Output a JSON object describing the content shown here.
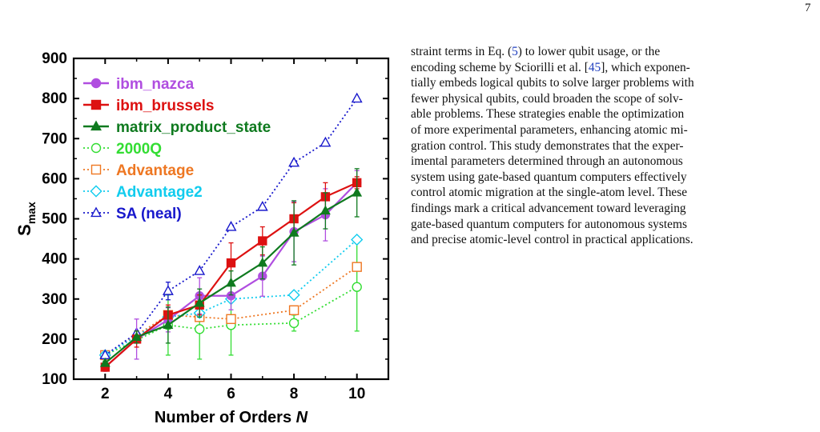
{
  "page_number": "7",
  "chart_data": {
    "type": "line",
    "xlabel": "Number of Orders",
    "xlabel_var": "N",
    "ylabel": "S",
    "ylabel_sub": "max",
    "xlim": [
      1,
      11
    ],
    "ylim": [
      100,
      900
    ],
    "xticks": [
      2,
      4,
      6,
      8,
      10
    ],
    "yticks": [
      100,
      200,
      300,
      400,
      500,
      600,
      700,
      800,
      900
    ],
    "grid": false,
    "legend_position": "top-left",
    "series": [
      {
        "name": "ibm_nazca",
        "color": "#b04ee0",
        "marker": "circle",
        "filled": true,
        "dashed": false,
        "x": [
          2,
          3,
          4,
          5,
          6,
          7,
          8,
          9,
          10
        ],
        "y": [
          130,
          200,
          248,
          308,
          308,
          357,
          468,
          510,
          590
        ],
        "err": [
          10,
          50,
          30,
          45,
          35,
          50,
          75,
          65,
          30
        ]
      },
      {
        "name": "ibm_brussels",
        "color": "#dd1111",
        "marker": "square",
        "filled": true,
        "dashed": false,
        "x": [
          2,
          3,
          4,
          5,
          6,
          7,
          8,
          9,
          10
        ],
        "y": [
          130,
          200,
          260,
          285,
          390,
          445,
          500,
          555,
          590
        ],
        "err": [
          10,
          20,
          25,
          25,
          50,
          35,
          40,
          35,
          15
        ]
      },
      {
        "name": "matrix_product_state",
        "color": "#0f7a1f",
        "marker": "triangle",
        "filled": true,
        "dashed": false,
        "x": [
          2,
          3,
          4,
          5,
          6,
          7,
          8,
          9,
          10
        ],
        "y": [
          140,
          205,
          235,
          290,
          340,
          390,
          465,
          520,
          565
        ],
        "err": [
          5,
          15,
          45,
          35,
          30,
          40,
          80,
          45,
          60
        ]
      },
      {
        "name": "2000Q",
        "color": "#33dd33",
        "marker": "circle",
        "filled": false,
        "dashed": true,
        "x": [
          2,
          4,
          5,
          6,
          8,
          10
        ],
        "y": [
          160,
          235,
          225,
          235,
          240,
          330
        ],
        "err": [
          5,
          75,
          75,
          75,
          20,
          110
        ]
      },
      {
        "name": "Advantage",
        "color": "#ee7722",
        "marker": "square",
        "filled": false,
        "dashed": true,
        "x": [
          2,
          4,
          5,
          6,
          8,
          10
        ],
        "y": [
          160,
          260,
          255,
          250,
          272,
          380
        ],
        "err": [
          5,
          0,
          0,
          0,
          0,
          0
        ]
      },
      {
        "name": "Advantage2",
        "color": "#11ccee",
        "marker": "diamond",
        "filled": false,
        "dashed": true,
        "x": [
          2,
          4,
          5,
          6,
          8,
          10
        ],
        "y": [
          160,
          255,
          265,
          300,
          310,
          448
        ],
        "err": [
          5,
          0,
          0,
          0,
          0,
          0
        ]
      },
      {
        "name": "SA (neal)",
        "color": "#1818cc",
        "marker": "triangle",
        "filled": false,
        "dashed": true,
        "x": [
          2,
          3,
          4,
          5,
          6,
          7,
          8,
          9,
          10
        ],
        "y": [
          160,
          215,
          320,
          370,
          480,
          530,
          640,
          690,
          800
        ],
        "err": [
          0,
          0,
          22,
          0,
          0,
          0,
          0,
          0,
          0
        ]
      }
    ]
  },
  "body_text": {
    "lines": [
      "straint terms in Eq.  (",
      "encoding scheme by Sciorilli et al. [",
      "tially embeds logical qubits to solve larger problems with",
      "fewer physical qubits, could broaden the scope of solv-",
      "able problems. These strategies enable the optimization",
      "of more experimental parameters, enhancing atomic mi-",
      "gration control. This study demonstrates that the exper-",
      "imental parameters determined through an autonomous",
      "system using gate-based quantum computers effectively",
      "control atomic migration at the single-atom level. These",
      "findings mark a critical advancement toward leveraging",
      "gate-based quantum computers for autonomous systems",
      "and precise atomic-level control in practical applications."
    ],
    "eq_ref": "5",
    "line1_rest": ") to lower qubit usage, or the",
    "cite_ref": "45",
    "line2_rest": "], which exponen-"
  }
}
